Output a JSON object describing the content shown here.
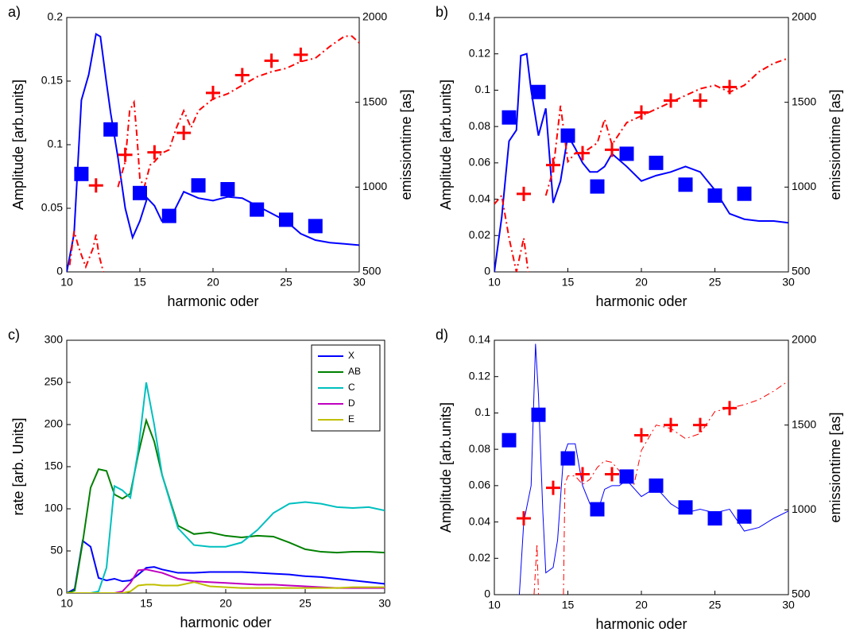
{
  "chart_data": [
    {
      "type": "line",
      "panel_label": "a)",
      "xlabel": "harmonic oder",
      "ylabel": "Amplitude [arb.units]",
      "y2label": "emissiontime [as]",
      "xlim": [
        10,
        30
      ],
      "xticks": [
        10,
        15,
        20,
        25,
        30
      ],
      "ylim": [
        0,
        0.2
      ],
      "yticks": [
        0,
        0.05,
        0.1,
        0.15,
        0.2
      ],
      "y2lim": [
        500,
        2000
      ],
      "y2ticks": [
        500,
        1000,
        1500,
        2000
      ],
      "series": [
        {
          "mode": "line",
          "style": "solid",
          "linewidth": 2,
          "color": "#0000ff",
          "x": [
            10,
            10.5,
            11,
            11.5,
            12,
            12.3,
            12.7,
            13,
            13.5,
            14,
            14.5,
            15,
            15.5,
            16,
            16.5,
            17,
            18,
            19,
            20,
            21,
            22,
            23,
            24,
            25,
            26,
            27,
            28,
            29,
            30
          ],
          "values": [
            0,
            0.03,
            0.135,
            0.155,
            0.187,
            0.185,
            0.15,
            0.125,
            0.09,
            0.05,
            0.027,
            0.04,
            0.058,
            0.052,
            0.04,
            0.04,
            0.063,
            0.058,
            0.056,
            0.059,
            0.058,
            0.052,
            0.046,
            0.04,
            0.03,
            0.025,
            0.023,
            0.022,
            0.021
          ]
        },
        {
          "mode": "markers",
          "marker": "square",
          "color": "#0000ff",
          "x": [
            11,
            13,
            15,
            17,
            19,
            21,
            23,
            25,
            27
          ],
          "values": [
            0.077,
            0.112,
            0.062,
            0.044,
            0.068,
            0.065,
            0.049,
            0.041,
            0.036
          ]
        },
        {
          "mode": "line",
          "style": "dashdot",
          "linewidth": 2,
          "color": "#ff0000",
          "axis": "y2",
          "x": [
            10.2,
            10.5,
            10.8,
            11,
            11.3,
            11.8,
            12,
            12.2,
            12.5,
            13,
            13.5,
            14,
            14.3,
            14.6,
            14.8,
            15,
            15.3,
            15.7,
            16,
            16.5,
            17,
            17.5,
            18,
            18.5,
            19,
            20,
            21,
            22,
            23,
            24,
            25,
            26,
            27,
            28,
            29,
            29.5,
            30
          ],
          "values": [
            540,
            740,
            650,
            600,
            530,
            640,
            720,
            600,
            500,
            null,
            1000,
            1150,
            1450,
            1500,
            1300,
            1050,
            1000,
            1130,
            1150,
            1200,
            1220,
            1350,
            1450,
            1350,
            1450,
            1520,
            1550,
            1600,
            1650,
            1680,
            1700,
            1740,
            1760,
            1830,
            1890,
            1890,
            1850
          ]
        },
        {
          "mode": "markers",
          "marker": "plus",
          "color": "#ff0000",
          "axis": "y2",
          "x": [
            12,
            14,
            16,
            18,
            20,
            22,
            24,
            26
          ],
          "values": [
            1010,
            1190,
            1205,
            1320,
            1555,
            1660,
            1745,
            1780
          ]
        }
      ]
    },
    {
      "type": "line",
      "panel_label": "b)",
      "xlabel": "harmonic oder",
      "ylabel": "Amplitude [arb.units]",
      "y2label": "emissiontime [as]",
      "xlim": [
        10,
        30
      ],
      "xticks": [
        10,
        15,
        20,
        25,
        30
      ],
      "ylim": [
        0,
        0.14
      ],
      "yticks": [
        0,
        0.02,
        0.04,
        0.06,
        0.08,
        0.1,
        0.12,
        0.14
      ],
      "y2lim": [
        500,
        2000
      ],
      "y2ticks": [
        500,
        1000,
        1500,
        2000
      ],
      "series": [
        {
          "mode": "line",
          "style": "solid",
          "linewidth": 2,
          "color": "#0000ff",
          "x": [
            10,
            10.5,
            11,
            11.5,
            11.8,
            12.2,
            12.5,
            13,
            13.5,
            14,
            14.5,
            15,
            15.5,
            16,
            16.5,
            17,
            17.5,
            18,
            19,
            20,
            21,
            22,
            23,
            24,
            25,
            26,
            27,
            28,
            29,
            30
          ],
          "values": [
            0,
            0.03,
            0.072,
            0.078,
            0.119,
            0.12,
            0.1,
            0.075,
            0.09,
            0.038,
            0.05,
            0.075,
            0.068,
            0.06,
            0.055,
            0.055,
            0.058,
            0.065,
            0.058,
            0.05,
            0.053,
            0.055,
            0.058,
            0.055,
            0.045,
            0.032,
            0.029,
            0.028,
            0.028,
            0.027
          ]
        },
        {
          "mode": "markers",
          "marker": "square",
          "color": "#0000ff",
          "x": [
            11,
            13,
            15,
            17,
            19,
            21,
            23,
            25,
            27
          ],
          "values": [
            0.085,
            0.099,
            0.075,
            0.047,
            0.065,
            0.06,
            0.048,
            0.042,
            0.043
          ]
        },
        {
          "mode": "line",
          "style": "dashdot",
          "linewidth": 2,
          "color": "#ff0000",
          "axis": "y2",
          "x": [
            10,
            10.5,
            11,
            11.5,
            12,
            12.3,
            13,
            13.5,
            14,
            14.5,
            15,
            15.5,
            16,
            17,
            17.5,
            18,
            19,
            20,
            21,
            22,
            23,
            24,
            25,
            26,
            27,
            28,
            29,
            30
          ],
          "values": [
            900,
            950,
            700,
            500,
            700,
            500,
            null,
            950,
            1100,
            1480,
            1150,
            1200,
            1200,
            1260,
            1400,
            1250,
            1380,
            1420,
            1460,
            1500,
            1540,
            1580,
            1600,
            1560,
            1600,
            1680,
            1730,
            1760
          ]
        },
        {
          "mode": "markers",
          "marker": "plus",
          "color": "#ff0000",
          "axis": "y2",
          "x": [
            12,
            14,
            16,
            18,
            20,
            22,
            24,
            26
          ],
          "values": [
            960,
            1130,
            1200,
            1220,
            1440,
            1510,
            1510,
            1590
          ]
        }
      ]
    },
    {
      "type": "line",
      "panel_label": "c)",
      "xlabel": "harmonic oder",
      "ylabel": "rate [arb. Units]",
      "legend": "upper right",
      "xlim": [
        10,
        30
      ],
      "xticks": [
        10,
        15,
        20,
        25,
        30
      ],
      "ylim": [
        0,
        300
      ],
      "yticks": [
        0,
        50,
        100,
        150,
        200,
        250,
        300
      ],
      "x": [
        10,
        10.5,
        11,
        11.5,
        12,
        12.5,
        13,
        13.5,
        14,
        14.5,
        15,
        15.5,
        16,
        17,
        18,
        19,
        20,
        21,
        22,
        23,
        24,
        25,
        26,
        27,
        28,
        29,
        30
      ],
      "series": [
        {
          "name": "X",
          "color": "#0000ff",
          "values": [
            0,
            5,
            62,
            55,
            18,
            15,
            17,
            14,
            15,
            22,
            30,
            31,
            28,
            24,
            24,
            25,
            25,
            25,
            24,
            23,
            22,
            20,
            19,
            17,
            15,
            13,
            11
          ]
        },
        {
          "name": "AB",
          "color": "#008000",
          "values": [
            0,
            3,
            60,
            125,
            147,
            145,
            117,
            112,
            118,
            165,
            205,
            180,
            140,
            80,
            70,
            72,
            68,
            66,
            68,
            67,
            60,
            52,
            49,
            48,
            49,
            49,
            48
          ]
        },
        {
          "name": "C",
          "color": "#00bfbf",
          "values": [
            0,
            0,
            0,
            0,
            2,
            30,
            127,
            122,
            113,
            170,
            250,
            200,
            140,
            77,
            57,
            55,
            55,
            60,
            75,
            95,
            106,
            108,
            106,
            102,
            101,
            102,
            98
          ]
        },
        {
          "name": "D",
          "color": "#bf00bf",
          "values": [
            0,
            0,
            0,
            0,
            0,
            0,
            0,
            2,
            12,
            27,
            28,
            26,
            24,
            17,
            14,
            13,
            12,
            11,
            10,
            10,
            9,
            8,
            7,
            6,
            6,
            6,
            6
          ]
        },
        {
          "name": "E",
          "color": "#bfbf00",
          "values": [
            0,
            0,
            0,
            0,
            0,
            0,
            0,
            0,
            2,
            9,
            10,
            10,
            9,
            9,
            13,
            8,
            7,
            6,
            6,
            6,
            6,
            6,
            6,
            6,
            7,
            7,
            7
          ]
        }
      ]
    },
    {
      "type": "line",
      "panel_label": "d)",
      "xlabel": "harmonic oder",
      "ylabel": "Amplitude [arb.units]",
      "y2label": "emissiontime [as]",
      "xlim": [
        10,
        30
      ],
      "xticks": [
        10,
        15,
        20,
        25,
        30
      ],
      "ylim": [
        0,
        0.14
      ],
      "yticks": [
        0,
        0.02,
        0.04,
        0.06,
        0.08,
        0.1,
        0.12,
        0.14
      ],
      "y2lim": [
        500,
        2000
      ],
      "y2ticks": [
        500,
        1000,
        1500,
        2000
      ],
      "series": [
        {
          "mode": "line",
          "style": "solid",
          "linewidth": 1,
          "color": "#0000ff",
          "x": [
            11.7,
            12,
            12.5,
            12.8,
            13,
            13.3,
            13.5,
            14,
            14.3,
            14.7,
            15,
            15.5,
            16,
            16.5,
            17,
            17.5,
            18,
            18.5,
            19,
            20,
            21,
            22,
            23,
            24,
            25,
            26,
            27,
            28,
            29,
            30
          ],
          "values": [
            0,
            0.04,
            0.06,
            0.138,
            0.11,
            0.045,
            0.012,
            0.015,
            0.03,
            0.076,
            0.083,
            0.083,
            0.06,
            0.05,
            0.045,
            0.058,
            0.06,
            0.06,
            0.063,
            0.054,
            0.059,
            0.05,
            0.045,
            0.047,
            0.045,
            0.047,
            0.035,
            0.037,
            0.042,
            0.046
          ]
        },
        {
          "mode": "markers",
          "marker": "square",
          "color": "#0000ff",
          "x": [
            11,
            13,
            15,
            17,
            19,
            21,
            23,
            25,
            27
          ],
          "values": [
            0.085,
            0.099,
            0.075,
            0.047,
            0.065,
            0.06,
            0.048,
            0.042,
            0.043
          ]
        },
        {
          "mode": "line",
          "style": "dashdot",
          "linewidth": 1,
          "color": "#ff0000",
          "axis": "y2",
          "x": [
            12.7,
            12.9,
            13,
            14,
            14.7,
            14.8,
            15,
            15.5,
            16,
            16.5,
            17,
            17.5,
            18,
            18.5,
            19,
            19.5,
            20,
            21,
            22,
            23,
            24,
            25,
            26,
            27,
            28,
            29,
            30
          ],
          "values": [
            500,
            800,
            500,
            null,
            500,
            1150,
            1200,
            1200,
            1150,
            1180,
            1250,
            1290,
            1280,
            1230,
            1170,
            1150,
            1350,
            1500,
            1480,
            1420,
            1450,
            1580,
            1600,
            1620,
            1650,
            1700,
            1760
          ]
        },
        {
          "mode": "markers",
          "marker": "plus",
          "color": "#ff0000",
          "axis": "y2",
          "x": [
            12,
            14,
            16,
            18,
            20,
            22,
            24,
            26
          ],
          "values": [
            950,
            1130,
            1210,
            1210,
            1440,
            1500,
            1500,
            1600
          ]
        }
      ]
    }
  ]
}
